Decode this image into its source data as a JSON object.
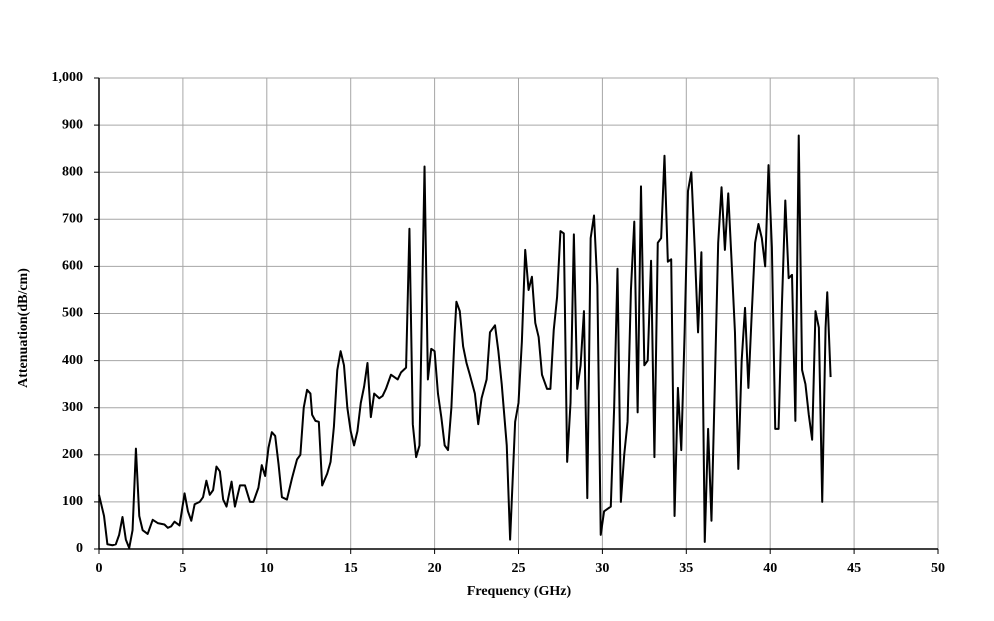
{
  "chart_data": {
    "type": "line",
    "x_label": "Frequency (GHz)",
    "y_label": "Attenuation(dB/cm)",
    "xlim": [
      0,
      50
    ],
    "xticks": [
      0,
      5,
      10,
      15,
      20,
      25,
      30,
      35,
      40,
      45,
      50
    ],
    "ylim": [
      0,
      1000
    ],
    "yticks": [
      0,
      100,
      200,
      300,
      400,
      500,
      600,
      700,
      800,
      900,
      {
        "value": 1000,
        "label": "1,000"
      }
    ],
    "grid": true,
    "series": [
      {
        "color": "#000000",
        "x": [
          0,
          0.3,
          0.5,
          0.8,
          1.0,
          1.2,
          1.4,
          1.6,
          1.8,
          2.0,
          2.2,
          2.4,
          2.6,
          2.9,
          3.2,
          3.5,
          3.9,
          4.1,
          4.3,
          4.5,
          4.8,
          5.1,
          5.3,
          5.5,
          5.7,
          6.0,
          6.2,
          6.4,
          6.6,
          6.8,
          7.0,
          7.2,
          7.4,
          7.6,
          7.9,
          8.1,
          8.4,
          8.7,
          9.0,
          9.2,
          9.5,
          9.7,
          9.9,
          10.1,
          10.3,
          10.5,
          10.7,
          10.9,
          11.2,
          11.5,
          11.8,
          12.0,
          12.2,
          12.4,
          12.6,
          12.7,
          12.9,
          13.1,
          13.3,
          13.6,
          13.8,
          14.0,
          14.2,
          14.4,
          14.6,
          14.8,
          15.0,
          15.2,
          15.4,
          15.6,
          15.8,
          16.0,
          16.2,
          16.4,
          16.7,
          16.9,
          17.1,
          17.4,
          17.8,
          18.0,
          18.3,
          18.5,
          18.7,
          18.9,
          19.1,
          19.4,
          19.6,
          19.8,
          20.0,
          20.2,
          20.4,
          20.6,
          20.8,
          21.0,
          21.2,
          21.3,
          21.5,
          21.7,
          21.9,
          22.1,
          22.4,
          22.6,
          22.8,
          23.1,
          23.3,
          23.6,
          23.8,
          24.0,
          24.3,
          24.5,
          24.8,
          25.0,
          25.2,
          25.4,
          25.6,
          25.8,
          26.0,
          26.2,
          26.4,
          26.7,
          26.9,
          27.1,
          27.3,
          27.5,
          27.7,
          27.9,
          28.1,
          28.3,
          28.5,
          28.7,
          28.9,
          29.1,
          29.3,
          29.5,
          29.7,
          29.9,
          30.1,
          30.3,
          30.5,
          30.7,
          30.9,
          31.1,
          31.3,
          31.5,
          31.7,
          31.9,
          32.1,
          32.3,
          32.5,
          32.7,
          32.9,
          33.1,
          33.3,
          33.5,
          33.7,
          33.9,
          34.1,
          34.3,
          34.5,
          34.7,
          34.9,
          35.1,
          35.3,
          35.5,
          35.7,
          35.9,
          36.1,
          36.3,
          36.5,
          36.7,
          36.9,
          37.1,
          37.3,
          37.5,
          37.7,
          37.9,
          38.1,
          38.3,
          38.5,
          38.7,
          38.9,
          39.1,
          39.3,
          39.5,
          39.7,
          39.9,
          40.1,
          40.3,
          40.5,
          40.7,
          40.9,
          41.1,
          41.3,
          41.5,
          41.7,
          41.9,
          42.1,
          42.3,
          42.5,
          42.7,
          42.9,
          43.1,
          43.3,
          43.4,
          43.6
        ],
        "values": [
          115,
          70,
          10,
          8,
          10,
          30,
          68,
          20,
          2,
          40,
          213,
          70,
          40,
          32,
          62,
          55,
          52,
          45,
          48,
          58,
          50,
          118,
          80,
          60,
          95,
          100,
          110,
          145,
          115,
          125,
          175,
          165,
          105,
          90,
          143,
          90,
          135,
          135,
          100,
          100,
          130,
          178,
          155,
          215,
          248,
          240,
          180,
          110,
          105,
          150,
          190,
          200,
          300,
          338,
          330,
          285,
          272,
          270,
          135,
          160,
          185,
          260,
          380,
          420,
          390,
          300,
          250,
          220,
          250,
          310,
          345,
          395,
          280,
          330,
          320,
          325,
          340,
          370,
          360,
          375,
          385,
          680,
          265,
          195,
          220,
          812,
          360,
          425,
          420,
          330,
          280,
          220,
          210,
          300,
          460,
          525,
          505,
          430,
          395,
          370,
          330,
          265,
          320,
          360,
          460,
          475,
          420,
          350,
          220,
          20,
          270,
          310,
          440,
          635,
          550,
          578,
          480,
          450,
          370,
          340,
          340,
          465,
          535,
          675,
          670,
          185,
          310,
          668,
          340,
          390,
          505,
          108,
          660,
          708,
          560,
          30,
          80,
          85,
          90,
          300,
          595,
          100,
          200,
          270,
          550,
          695,
          290,
          770,
          390,
          400,
          612,
          195,
          650,
          660,
          835,
          610,
          615,
          70,
          342,
          210,
          460,
          760,
          800,
          640,
          460,
          630,
          15,
          255,
          60,
          350,
          650,
          768,
          635,
          755,
          610,
          460,
          170,
          400,
          512,
          342,
          500,
          650,
          690,
          660,
          600,
          815,
          640,
          255,
          255,
          520,
          740,
          575,
          582,
          272,
          878,
          380,
          350,
          285,
          232,
          505,
          470,
          100,
          470,
          545,
          365
        ]
      }
    ]
  }
}
